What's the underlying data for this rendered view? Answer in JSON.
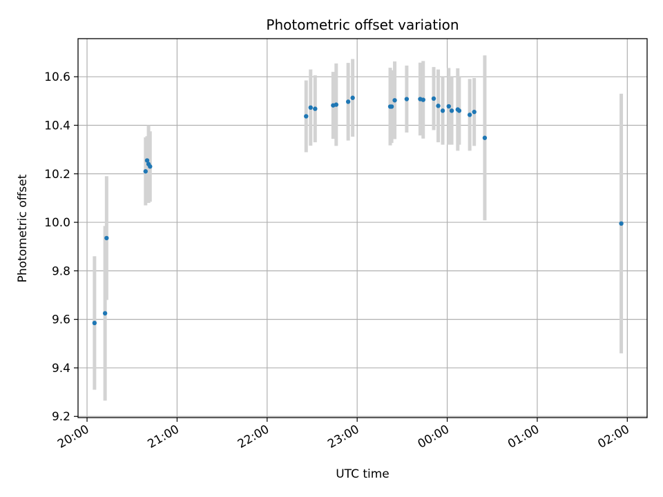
{
  "chart_data": {
    "type": "scatter",
    "title": "Photometric offset variation",
    "xlabel": "UTC time",
    "ylabel": "Photometric offset",
    "x_unit": "UTC time (hours; values past 24 are after midnight)",
    "xlim": [
      19.9,
      26.22
    ],
    "ylim": [
      9.195,
      10.757
    ],
    "grid": true,
    "legend": false,
    "x_ticks": [
      {
        "value": 20,
        "label": "20:00"
      },
      {
        "value": 21,
        "label": "21:00"
      },
      {
        "value": 22,
        "label": "22:00"
      },
      {
        "value": 23,
        "label": "23:00"
      },
      {
        "value": 24,
        "label": "00:00"
      },
      {
        "value": 25,
        "label": "01:00"
      },
      {
        "value": 26,
        "label": "02:00"
      }
    ],
    "y_ticks": [
      {
        "value": 9.2,
        "label": "9.2"
      },
      {
        "value": 9.4,
        "label": "9.4"
      },
      {
        "value": 9.6,
        "label": "9.6"
      },
      {
        "value": 9.8,
        "label": "9.8"
      },
      {
        "value": 10.0,
        "label": "10.0"
      },
      {
        "value": 10.2,
        "label": "10.2"
      },
      {
        "value": 10.4,
        "label": "10.4"
      },
      {
        "value": 10.6,
        "label": "10.6"
      }
    ],
    "colors": {
      "marker": "#1f77b4",
      "errorbar": "#d3d3d3"
    },
    "points": [
      {
        "x": 20.083,
        "y": 9.585,
        "err": 0.275
      },
      {
        "x": 20.2,
        "y": 9.625,
        "err": 0.36
      },
      {
        "x": 20.217,
        "y": 9.935,
        "err": 0.255
      },
      {
        "x": 20.65,
        "y": 10.21,
        "err": 0.14
      },
      {
        "x": 20.667,
        "y": 10.255,
        "err": 0.1
      },
      {
        "x": 20.683,
        "y": 10.24,
        "err": 0.16
      },
      {
        "x": 20.7,
        "y": 10.23,
        "err": 0.145
      },
      {
        "x": 22.433,
        "y": 10.437,
        "err": 0.148
      },
      {
        "x": 22.483,
        "y": 10.473,
        "err": 0.157
      },
      {
        "x": 22.533,
        "y": 10.468,
        "err": 0.138
      },
      {
        "x": 22.733,
        "y": 10.482,
        "err": 0.138
      },
      {
        "x": 22.767,
        "y": 10.485,
        "err": 0.17
      },
      {
        "x": 22.9,
        "y": 10.497,
        "err": 0.16
      },
      {
        "x": 22.95,
        "y": 10.513,
        "err": 0.16
      },
      {
        "x": 23.367,
        "y": 10.477,
        "err": 0.16
      },
      {
        "x": 23.383,
        "y": 10.477,
        "err": 0.15
      },
      {
        "x": 23.417,
        "y": 10.503,
        "err": 0.16
      },
      {
        "x": 23.55,
        "y": 10.508,
        "err": 0.138
      },
      {
        "x": 23.7,
        "y": 10.508,
        "err": 0.15
      },
      {
        "x": 23.733,
        "y": 10.505,
        "err": 0.16
      },
      {
        "x": 23.85,
        "y": 10.51,
        "err": 0.13
      },
      {
        "x": 23.9,
        "y": 10.48,
        "err": 0.15
      },
      {
        "x": 23.95,
        "y": 10.46,
        "err": 0.14
      },
      {
        "x": 24.017,
        "y": 10.478,
        "err": 0.158
      },
      {
        "x": 24.05,
        "y": 10.46,
        "err": 0.14
      },
      {
        "x": 24.117,
        "y": 10.465,
        "err": 0.17
      },
      {
        "x": 24.133,
        "y": 10.46,
        "err": 0.14
      },
      {
        "x": 24.25,
        "y": 10.443,
        "err": 0.148
      },
      {
        "x": 24.3,
        "y": 10.455,
        "err": 0.14
      },
      {
        "x": 24.417,
        "y": 10.348,
        "err": 0.34
      },
      {
        "x": 25.933,
        "y": 9.995,
        "err": 0.535
      }
    ]
  }
}
